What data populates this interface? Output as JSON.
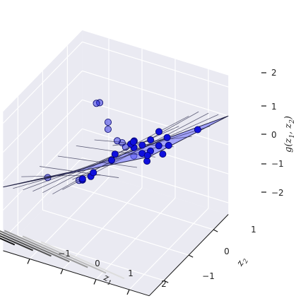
{
  "chart_data": {
    "type": "3d-scatter-surface",
    "xlabel": "z_1",
    "ylabel": "z_2",
    "zlabel": "g(z_1, z_2)",
    "x_ticks": [
      "−1",
      "0",
      "1",
      "2"
    ],
    "y_ticks": [
      "−1",
      "0",
      "1"
    ],
    "z_ticks": [
      "−2",
      "−1",
      "0",
      "1",
      "2"
    ],
    "xlim": [
      -1.8,
      2.6
    ],
    "ylim": [
      -1.6,
      1.6
    ],
    "zlim": [
      -2.4,
      2.4
    ],
    "surface": {
      "plane": "g = z1 - z2",
      "x_range": [
        -1.8,
        2.6
      ],
      "y_range": [
        -1.6,
        1.6
      ],
      "grid_divisions": 8
    },
    "points": [
      {
        "z1": -1.2,
        "z2": 1.5,
        "g": 0.2
      },
      {
        "z1": -1.0,
        "z2": 1.1,
        "g": 0.6
      },
      {
        "z1": -0.8,
        "z2": 1.3,
        "g": -0.4
      },
      {
        "z1": -0.5,
        "z2": 0.9,
        "g": 0.3
      },
      {
        "z1": -0.3,
        "z2": 1.2,
        "g": -0.6
      },
      {
        "z1": 0.0,
        "z2": 0.6,
        "g": 0.1
      },
      {
        "z1": 0.2,
        "z2": 1.0,
        "g": -0.7
      },
      {
        "z1": 0.4,
        "z2": 0.4,
        "g": 0.2
      },
      {
        "z1": 0.6,
        "z2": 0.8,
        "g": -0.3
      },
      {
        "z1": 0.8,
        "z2": 0.2,
        "g": 0.5
      },
      {
        "z1": 1.0,
        "z2": 0.6,
        "g": 0.1
      },
      {
        "z1": 1.2,
        "z2": 0.0,
        "g": 0.9
      },
      {
        "z1": 1.4,
        "z2": 0.4,
        "g": 0.6
      },
      {
        "z1": 1.6,
        "z2": -0.2,
        "g": 1.4
      },
      {
        "z1": 1.8,
        "z2": 0.2,
        "g": 1.2
      },
      {
        "z1": 2.0,
        "z2": -0.4,
        "g": 2.0
      },
      {
        "z1": -0.9,
        "z2": 0.4,
        "g": -1.4
      },
      {
        "z1": -0.6,
        "z2": 0.0,
        "g": -0.9
      },
      {
        "z1": -0.2,
        "z2": -0.2,
        "g": -0.5
      },
      {
        "z1": 0.1,
        "z2": -0.5,
        "g": 0.0
      },
      {
        "z1": 0.5,
        "z2": -0.3,
        "g": 0.4
      },
      {
        "z1": 0.9,
        "z2": -0.7,
        "g": 1.1
      },
      {
        "z1": 1.3,
        "z2": -0.6,
        "g": 1.5
      },
      {
        "z1": 1.7,
        "z2": -1.0,
        "g": 2.1
      },
      {
        "z1": -1.3,
        "z2": 0.8,
        "g": -1.9
      },
      {
        "z1": 0.3,
        "z2": 1.4,
        "g": -1.2
      },
      {
        "z1": 1.1,
        "z2": 1.2,
        "g": -0.2
      },
      {
        "z1": 2.2,
        "z2": 0.9,
        "g": 1.0
      },
      {
        "z1": 2.4,
        "z2": -1.4,
        "g": 2.2
      },
      {
        "z1": 0.7,
        "z2": 1.5,
        "g": -0.9
      },
      {
        "z1": -1.5,
        "z2": -0.2,
        "g": -1.0
      },
      {
        "z1": 1.9,
        "z2": -1.3,
        "g": 2.4
      }
    ],
    "colors": {
      "point": "#1010dd",
      "point_edge": "#000066",
      "surface_fill": "#6666ff",
      "surface_grid": "#222244",
      "pane": "#eaeaf2",
      "pane_grid": "#ffffff",
      "axis": "#111111"
    },
    "grid": true
  }
}
